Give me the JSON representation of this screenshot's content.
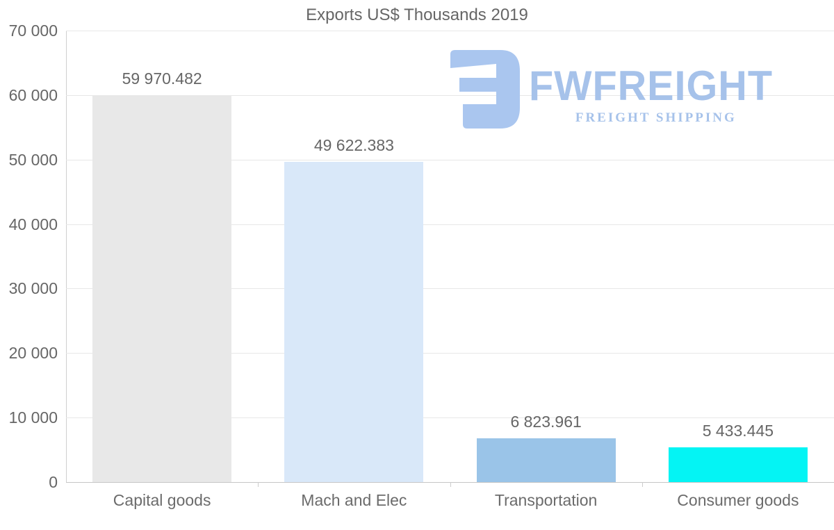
{
  "title": "Exports US$ Thousands 2019",
  "logo": {
    "name": "FWFREIGHT",
    "tagline": "FREIGHT SHIPPING",
    "text_color": "#a6c2ea",
    "icon_color": "#aac6ef"
  },
  "chart_data": {
    "type": "bar",
    "title": "Exports US$ Thousands 2019",
    "categories": [
      "Capital goods",
      "Mach and Elec",
      "Transportation",
      "Consumer goods"
    ],
    "values": [
      59970.482,
      49622.383,
      6823.961,
      5433.445
    ],
    "value_labels": [
      "59 970.482",
      "49 622.383",
      "6 823.961",
      "5 433.445"
    ],
    "bar_colors": [
      "#e8e8e8",
      "#d9e8f9",
      "#9ac4e8",
      "#04f4f4"
    ],
    "xlabel": "",
    "ylabel": "",
    "ylim": [
      0,
      70000
    ],
    "y_ticks": [
      {
        "value": 0,
        "label": "0"
      },
      {
        "value": 10000,
        "label": "10 000"
      },
      {
        "value": 20000,
        "label": "20 000"
      },
      {
        "value": 30000,
        "label": "30 000"
      },
      {
        "value": 40000,
        "label": "40 000"
      },
      {
        "value": 50000,
        "label": "50 000"
      },
      {
        "value": 60000,
        "label": "60 000"
      },
      {
        "value": 70000,
        "label": "70 000"
      }
    ],
    "grid": "horizontal",
    "legend": "none",
    "text_color": "#666666",
    "gridline_color": "#e7e7e7",
    "axis_color": "#c6c6c6"
  }
}
